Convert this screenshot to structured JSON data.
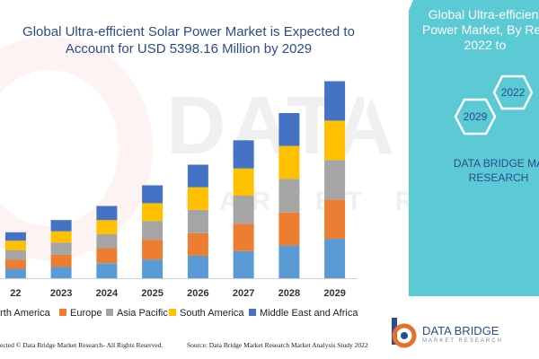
{
  "title": "Global Ultra-efficient Solar Power Market is Expected to Account for USD 5398.16 Million by 2029",
  "side_panel": {
    "title_line1": "Global Ultra-efficient",
    "title_line2": "Power Market, By Reg",
    "title_line3": "2022 to",
    "hex_a": "2022",
    "hex_b": "2029",
    "brand_line1": "DATA BRIDGE MA",
    "brand_line2": "RESEARCH"
  },
  "watermark": {
    "big": "DATA BRIDG",
    "small": "MARKET RESEARCH"
  },
  "logo": {
    "name": "DATA BRIDGE",
    "tagline": "MARKET RESEARCH"
  },
  "footer": {
    "copyright": "ected © Data Bridge Market Research- All Rights Reserved.",
    "source": "Source: Data Bridge Market Research Market Analysis Study 2022"
  },
  "colors": {
    "accent": "#5ccad4",
    "brand_blue": "#2b4c8c"
  },
  "chart_data": {
    "type": "bar",
    "stacked": true,
    "categories": [
      "22",
      "2023",
      "2024",
      "2025",
      "2026",
      "2027",
      "2028",
      "2029"
    ],
    "series": [
      {
        "name": "orth America",
        "color": "#5b9bd5",
        "values": [
          10,
          12,
          16,
          20,
          24,
          29,
          35,
          42
        ]
      },
      {
        "name": "Europe",
        "color": "#ed7d31",
        "values": [
          10,
          13,
          16,
          21,
          24,
          29,
          35,
          42
        ]
      },
      {
        "name": "Asia Pacific",
        "color": "#a5a5a5",
        "values": [
          10,
          13,
          15,
          20,
          25,
          30,
          36,
          42
        ]
      },
      {
        "name": "South America",
        "color": "#ffc000",
        "values": [
          10,
          12,
          15,
          19,
          24,
          29,
          35,
          42
        ]
      },
      {
        "name": "Middle East and Africa",
        "color": "#4472c4",
        "values": [
          9,
          12,
          15,
          19,
          24,
          30,
          35,
          42
        ]
      }
    ],
    "ylim": [
      0,
      220
    ],
    "grid": false,
    "legend_position": "bottom"
  }
}
